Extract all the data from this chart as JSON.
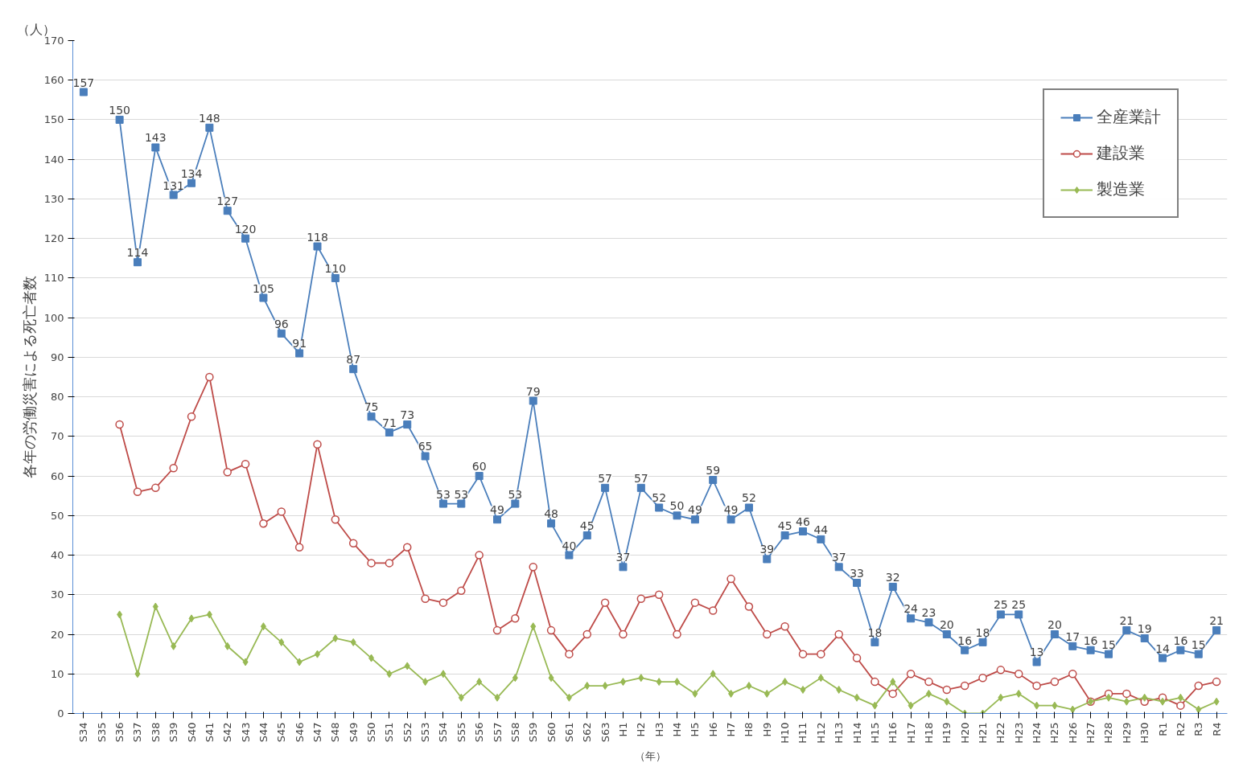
{
  "chart_data": {
    "type": "line",
    "xlabel": "（年）",
    "ylabel": "各年の労働災害による死亡者数",
    "annotations": [
      "（人）"
    ],
    "categories": [
      "S34",
      "S35",
      "S36",
      "S37",
      "S38",
      "S39",
      "S40",
      "S41",
      "S42",
      "S43",
      "S44",
      "S45",
      "S46",
      "S47",
      "S48",
      "S49",
      "S50",
      "S51",
      "S52",
      "S53",
      "S54",
      "S55",
      "S56",
      "S57",
      "S58",
      "S59",
      "S60",
      "S61",
      "S62",
      "S63",
      "H1",
      "H2",
      "H3",
      "H4",
      "H5",
      "H6",
      "H7",
      "H8",
      "H9",
      "H10",
      "H11",
      "H12",
      "H13",
      "H14",
      "H15",
      "H16",
      "H17",
      "H18",
      "H19",
      "H20",
      "H21",
      "H22",
      "H23",
      "H24",
      "H25",
      "H26",
      "H27",
      "H28",
      "H29",
      "H30",
      "R1",
      "R2",
      "R3",
      "R4"
    ],
    "ylim": [
      0,
      170
    ],
    "yticks": [
      0,
      10,
      20,
      30,
      40,
      50,
      60,
      70,
      80,
      90,
      100,
      110,
      120,
      130,
      140,
      150,
      160,
      170
    ],
    "grid": "y",
    "legend": "top right",
    "series": [
      {
        "name": "全産業計",
        "color": "#4a7ebb",
        "marker": "square",
        "values": [
          157,
          null,
          150,
          114,
          143,
          131,
          134,
          148,
          127,
          120,
          105,
          96,
          91,
          118,
          110,
          87,
          75,
          71,
          73,
          65,
          53,
          53,
          60,
          49,
          53,
          79,
          48,
          40,
          45,
          57,
          37,
          57,
          52,
          50,
          49,
          59,
          49,
          52,
          39,
          45,
          46,
          44,
          37,
          33,
          18,
          32,
          24,
          23,
          20,
          16,
          18,
          25,
          25,
          13,
          20,
          17,
          16,
          15,
          21,
          19,
          14,
          16,
          15,
          21
        ],
        "value_labels": [
          "157",
          null,
          "150",
          "114",
          "143",
          "131",
          "134",
          "148",
          "127",
          "120",
          "105",
          "96",
          "91",
          "118",
          "110",
          "87",
          "75",
          "71",
          "73",
          "65",
          "53",
          "53",
          "60",
          "49",
          "53",
          "79",
          "48",
          "40",
          "45",
          "57",
          "37",
          "57",
          "52",
          "50",
          "49",
          "59",
          "49",
          "52",
          "39",
          "45",
          "46",
          "44",
          "37",
          "33",
          "18",
          "32",
          "24",
          "23",
          "20",
          "16",
          "18",
          "25",
          "25",
          "13",
          "20",
          "17",
          "16",
          "15",
          "21",
          "19",
          "14",
          "16",
          "15",
          "21"
        ]
      },
      {
        "name": "建設業",
        "color": "#be4b48",
        "marker": "circle",
        "values": [
          null,
          null,
          73,
          56,
          57,
          62,
          75,
          85,
          61,
          63,
          48,
          51,
          42,
          68,
          49,
          43,
          38,
          38,
          42,
          29,
          28,
          31,
          40,
          21,
          24,
          37,
          21,
          15,
          20,
          28,
          20,
          29,
          30,
          20,
          28,
          26,
          34,
          27,
          20,
          22,
          15,
          15,
          20,
          14,
          8,
          5,
          10,
          8,
          6,
          7,
          9,
          11,
          10,
          7,
          8,
          10,
          3,
          5,
          5,
          3,
          4,
          2,
          7,
          8
        ]
      },
      {
        "name": "製造業",
        "color": "#98b954",
        "marker": "diamond",
        "values": [
          null,
          null,
          25,
          10,
          27,
          17,
          24,
          25,
          17,
          13,
          22,
          18,
          13,
          15,
          19,
          18,
          14,
          10,
          12,
          8,
          10,
          4,
          8,
          4,
          9,
          22,
          9,
          4,
          7,
          7,
          8,
          9,
          8,
          8,
          5,
          10,
          5,
          7,
          5,
          8,
          6,
          9,
          6,
          4,
          2,
          8,
          2,
          5,
          3,
          0,
          0,
          4,
          5,
          2,
          2,
          1,
          3,
          4,
          3,
          4,
          3,
          4,
          1,
          3
        ]
      }
    ]
  }
}
